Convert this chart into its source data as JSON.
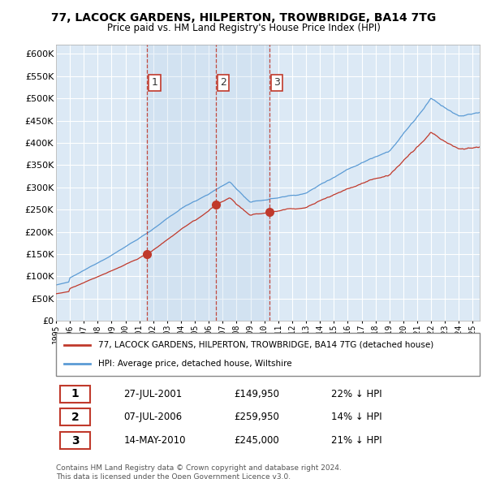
{
  "title": "77, LACOCK GARDENS, HILPERTON, TROWBRIDGE, BA14 7TG",
  "subtitle": "Price paid vs. HM Land Registry's House Price Index (HPI)",
  "ylim": [
    0,
    620000
  ],
  "yticks": [
    0,
    50000,
    100000,
    150000,
    200000,
    250000,
    300000,
    350000,
    400000,
    450000,
    500000,
    550000,
    600000
  ],
  "background_color": "#ffffff",
  "plot_bg_color": "#dce9f5",
  "grid_color": "#ffffff",
  "hpi_color": "#5b9bd5",
  "price_color": "#c0392b",
  "vline_color": "#c0392b",
  "shade_color": "#c8daee",
  "transactions": [
    {
      "label": "1",
      "date_x": 2001.57,
      "price": 149950,
      "hpi_pct": "22% ↓ HPI",
      "date_str": "27-JUL-2001",
      "price_str": "£149,950"
    },
    {
      "label": "2",
      "date_x": 2006.52,
      "price": 259950,
      "hpi_pct": "14% ↓ HPI",
      "date_str": "07-JUL-2006",
      "price_str": "£259,950"
    },
    {
      "label": "3",
      "date_x": 2010.37,
      "price": 245000,
      "hpi_pct": "21% ↓ HPI",
      "date_str": "14-MAY-2010",
      "price_str": "£245,000"
    }
  ],
  "legend_entries": [
    "77, LACOCK GARDENS, HILPERTON, TROWBRIDGE, BA14 7TG (detached house)",
    "HPI: Average price, detached house, Wiltshire"
  ],
  "footer": "Contains HM Land Registry data © Crown copyright and database right 2024.\nThis data is licensed under the Open Government Licence v3.0.",
  "xmin": 1995,
  "xmax": 2025.5
}
